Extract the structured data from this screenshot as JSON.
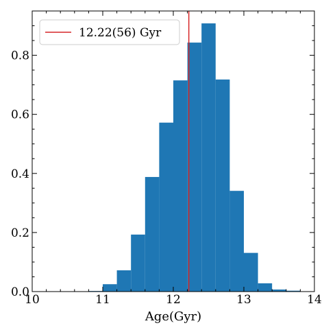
{
  "chart_data": {
    "type": "bar",
    "title": "",
    "xlabel": "Age(Gyr)",
    "ylabel": "",
    "xlim": [
      10,
      14
    ],
    "ylim": [
      0,
      0.95
    ],
    "bin_edges": [
      10.8,
      11.0,
      11.2,
      11.4,
      11.6,
      11.8,
      12.0,
      12.2,
      12.4,
      12.6,
      12.8,
      13.0,
      13.2,
      13.4,
      13.6,
      13.8
    ],
    "values": [
      0.002,
      0.025,
      0.072,
      0.193,
      0.388,
      0.572,
      0.715,
      0.843,
      0.908,
      0.718,
      0.341,
      0.131,
      0.028,
      0.007,
      0.003
    ],
    "bar_color": "#1f77b4",
    "xticks": [
      10,
      11,
      12,
      13,
      14
    ],
    "xtick_labels": [
      "10",
      "11",
      "12",
      "13",
      "14"
    ],
    "yticks": [
      0.0,
      0.2,
      0.4,
      0.6,
      0.8
    ],
    "ytick_labels": [
      "0.0",
      "0.2",
      "0.4",
      "0.6",
      "0.8"
    ],
    "vline": {
      "x": 12.22,
      "color": "#d62728",
      "label": "12.22(56) Gyr"
    },
    "legend": {
      "position": "top-left",
      "entries": [
        "12.22(56) Gyr"
      ]
    },
    "grid": false
  }
}
